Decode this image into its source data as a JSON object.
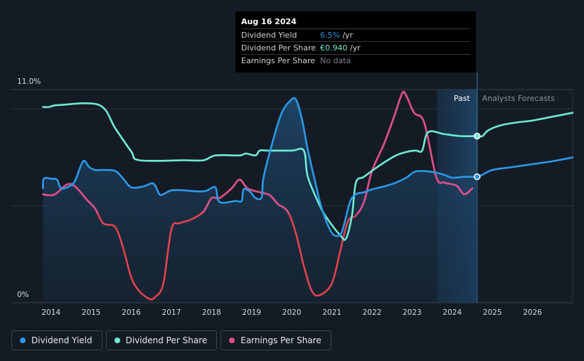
{
  "tooltip": {
    "date": "Aug 16 2024",
    "rows": [
      {
        "label": "Dividend Yield",
        "value": "6.5%",
        "unit": " /yr"
      },
      {
        "label": "Dividend Per Share",
        "value": "€0.940",
        "unit": " /yr"
      },
      {
        "label": "Earnings Per Share",
        "value": "No data",
        "unit": ""
      }
    ]
  },
  "regions": {
    "past": "Past",
    "forecast": "Analysts Forecasts"
  },
  "legend": [
    {
      "label": "Dividend Yield",
      "color": "#2c98e7"
    },
    {
      "label": "Dividend Per Share",
      "color": "#6fe9d4"
    },
    {
      "label": "Earnings Per Share",
      "color": "#d84f8d"
    }
  ],
  "chart_data": {
    "type": "line",
    "y_top_label": "11.0%",
    "y_bottom_label": "0%",
    "ylim": [
      0,
      11.0
    ],
    "xlim": [
      2013.65,
      2027.0
    ],
    "x_ticks": [
      2014,
      2015,
      2016,
      2017,
      2018,
      2019,
      2020,
      2021,
      2022,
      2023,
      2024,
      2025,
      2026
    ],
    "x_tick_labels": [
      "2014",
      "2015",
      "2016",
      "2017",
      "2018",
      "2019",
      "2020",
      "2021",
      "2022",
      "2023",
      "2024",
      "2025",
      "2026"
    ],
    "past_end_x": 2024.62,
    "past_shade_start_x": 2023.62,
    "series": [
      {
        "name": "Dividend Yield",
        "color": "#2c98e7",
        "x": [
          2013.8,
          2013.82,
          2014.0,
          2014.15,
          2014.25,
          2014.45,
          2014.6,
          2014.8,
          2014.95,
          2015.1,
          2015.3,
          2015.6,
          2015.8,
          2016.0,
          2016.3,
          2016.55,
          2016.7,
          2016.8,
          2017.0,
          2017.3,
          2017.6,
          2017.8,
          2017.9,
          2018.1,
          2018.2,
          2018.6,
          2018.75,
          2018.8,
          2018.95,
          2019.1,
          2019.25,
          2019.3,
          2019.55,
          2019.75,
          2019.95,
          2020.1,
          2020.25,
          2020.4,
          2020.6,
          2020.75,
          2021.0,
          2021.2,
          2021.3,
          2021.45,
          2021.6,
          2021.8,
          2022.0,
          2022.3,
          2022.6,
          2022.85,
          2022.95,
          2023.05,
          2023.2,
          2023.5,
          2023.8,
          2024.0,
          2024.3,
          2024.62,
          2024.75,
          2025.0,
          2025.5,
          2026.0,
          2026.5,
          2027.0
        ],
        "y": [
          5.9,
          6.4,
          6.4,
          6.35,
          5.9,
          6.0,
          6.3,
          7.3,
          7.0,
          6.85,
          6.85,
          6.8,
          6.4,
          5.95,
          6.0,
          6.15,
          5.6,
          5.6,
          5.8,
          5.8,
          5.75,
          5.75,
          5.8,
          5.95,
          5.2,
          5.25,
          5.25,
          5.85,
          5.75,
          5.4,
          5.45,
          6.5,
          8.5,
          9.8,
          10.4,
          10.5,
          9.5,
          7.9,
          6.1,
          4.85,
          3.6,
          3.5,
          4.0,
          5.2,
          5.6,
          5.7,
          5.85,
          6.0,
          6.2,
          6.45,
          6.6,
          6.75,
          6.8,
          6.75,
          6.6,
          6.45,
          6.5,
          6.5,
          6.6,
          6.85,
          7.0,
          7.15,
          7.3,
          7.5
        ]
      },
      {
        "name": "Dividend Per Share",
        "color": "#6fe9d4",
        "x": [
          2013.8,
          2013.95,
          2014.2,
          2015.2,
          2015.6,
          2016.0,
          2016.2,
          2017.3,
          2017.8,
          2018.1,
          2018.7,
          2018.85,
          2019.1,
          2019.2,
          2019.4,
          2020.0,
          2020.3,
          2020.4,
          2020.7,
          2020.9,
          2021.2,
          2021.35,
          2021.5,
          2021.6,
          2021.8,
          2022.2,
          2022.6,
          2022.9,
          2023.1,
          2023.25,
          2023.4,
          2023.8,
          2024.2,
          2024.62,
          2024.75,
          2024.9,
          2025.2,
          2025.6,
          2026.0,
          2026.5,
          2027.0
        ],
        "y": [
          10.1,
          10.1,
          10.2,
          10.2,
          9.0,
          7.8,
          7.35,
          7.35,
          7.35,
          7.6,
          7.6,
          7.7,
          7.6,
          7.85,
          7.85,
          7.85,
          7.85,
          6.5,
          5.0,
          4.3,
          3.5,
          3.3,
          4.5,
          6.2,
          6.5,
          7.1,
          7.6,
          7.8,
          7.85,
          7.85,
          8.8,
          8.7,
          8.6,
          8.6,
          8.6,
          8.9,
          9.15,
          9.3,
          9.4,
          9.6,
          9.8
        ]
      },
      {
        "name": "Earnings Per Share",
        "color": "#d84f8d",
        "x": [
          2013.8,
          2013.9,
          2014.1,
          2014.4,
          2014.6,
          2014.9,
          2015.1,
          2015.3,
          2015.6,
          2015.8,
          2016.0,
          2016.2,
          2016.45,
          2016.6,
          2016.8,
          2017.0,
          2017.2,
          2017.5,
          2017.8,
          2018.0,
          2018.2,
          2018.5,
          2018.7,
          2018.9,
          2019.2,
          2019.45,
          2019.65,
          2019.9,
          2020.1,
          2020.3,
          2020.5,
          2020.7,
          2021.0,
          2021.2,
          2021.4,
          2021.6,
          2021.8,
          2022.0,
          2022.3,
          2022.55,
          2022.75,
          2022.85,
          2023.05,
          2023.3,
          2023.6,
          2023.8,
          2024.1,
          2024.3,
          2024.5
        ],
        "y": [
          5.6,
          5.55,
          5.6,
          6.1,
          6.0,
          5.3,
          4.85,
          4.1,
          3.9,
          2.8,
          1.3,
          0.6,
          0.2,
          0.3,
          1.0,
          3.8,
          4.1,
          4.3,
          4.7,
          5.4,
          5.4,
          5.9,
          6.35,
          5.9,
          5.7,
          5.55,
          5.1,
          4.7,
          3.6,
          1.9,
          0.6,
          0.4,
          1.0,
          2.6,
          4.2,
          4.5,
          5.2,
          6.8,
          8.2,
          9.6,
          10.8,
          10.7,
          9.8,
          9.3,
          6.5,
          6.2,
          6.05,
          5.6,
          5.9
        ]
      }
    ]
  }
}
